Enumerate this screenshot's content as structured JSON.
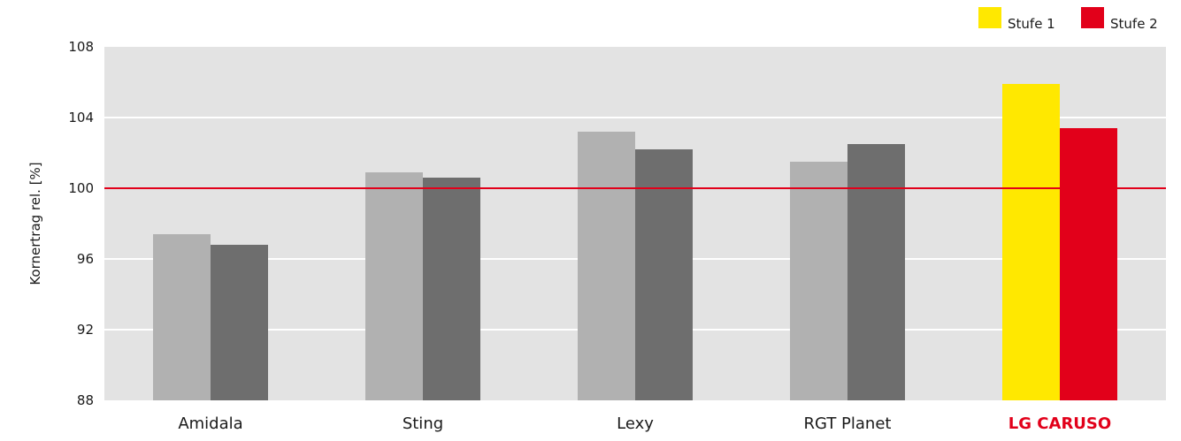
{
  "chart_data": {
    "type": "bar",
    "ylabel": "Kornertrag rel. [%]",
    "ylim": [
      88,
      108
    ],
    "yticks": [
      "88",
      "92",
      "96",
      "100",
      "104",
      "108"
    ],
    "reference_line": 100,
    "categories": [
      "Amidala",
      "Sting",
      "Lexy",
      "RGT Planet",
      "LG CARUSO"
    ],
    "highlight_category": "LG CARUSO",
    "series": [
      {
        "name": "Stufe 1",
        "values": [
          97.4,
          100.9,
          103.2,
          101.5,
          105.9
        ]
      },
      {
        "name": "Stufe 2",
        "values": [
          96.8,
          100.6,
          102.2,
          102.5,
          103.4
        ]
      }
    ],
    "legend": [
      "Stufe 1",
      "Stufe 2"
    ],
    "legend_position": "top-right",
    "grid": true
  },
  "colors": {
    "plot_bg": "#e3e3e3",
    "grid": "#ffffff",
    "reference": "#e2001a",
    "series1": "#b1b1b1",
    "series2": "#6e6e6e",
    "highlight1": "#ffe800",
    "highlight2": "#e2001a",
    "highlight_text": "#e2001a"
  }
}
